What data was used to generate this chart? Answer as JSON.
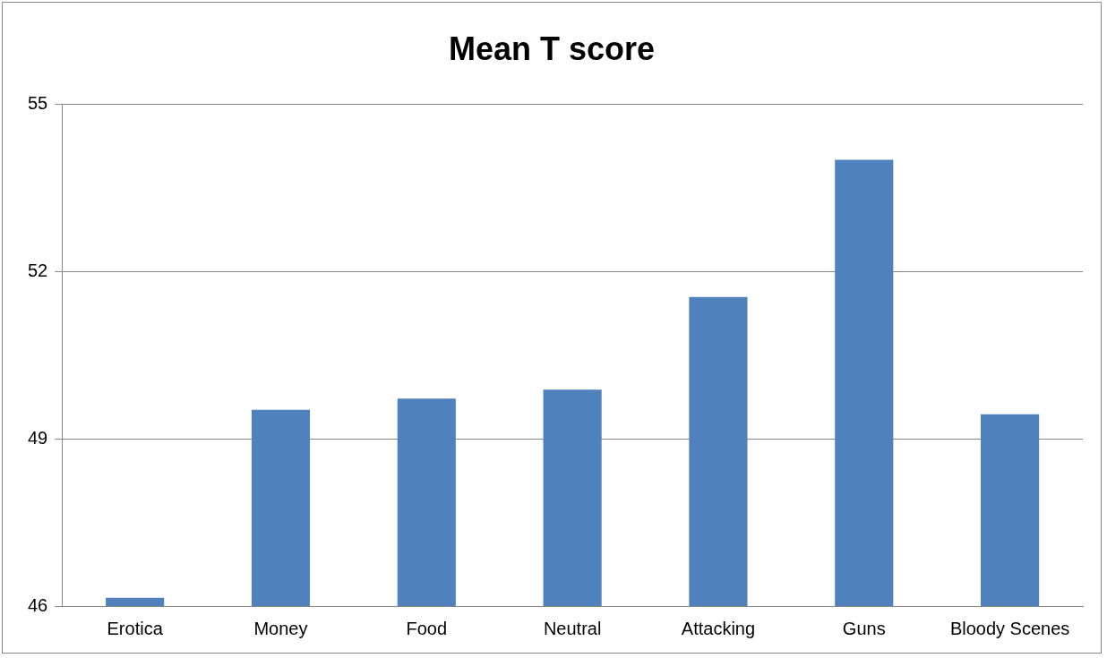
{
  "chart_data": {
    "type": "bar",
    "title": "Mean T score",
    "categories": [
      "Erotica",
      "Money",
      "Food",
      "Neutral",
      "Attacking",
      "Guns",
      "Bloody Scenes"
    ],
    "values": [
      46.15,
      49.52,
      49.72,
      49.88,
      51.54,
      54.0,
      49.44
    ],
    "color": "#4f81bd",
    "ylim": [
      46,
      55
    ],
    "yticks": [
      46,
      49,
      52,
      55
    ],
    "grid": "y",
    "legend": false
  }
}
